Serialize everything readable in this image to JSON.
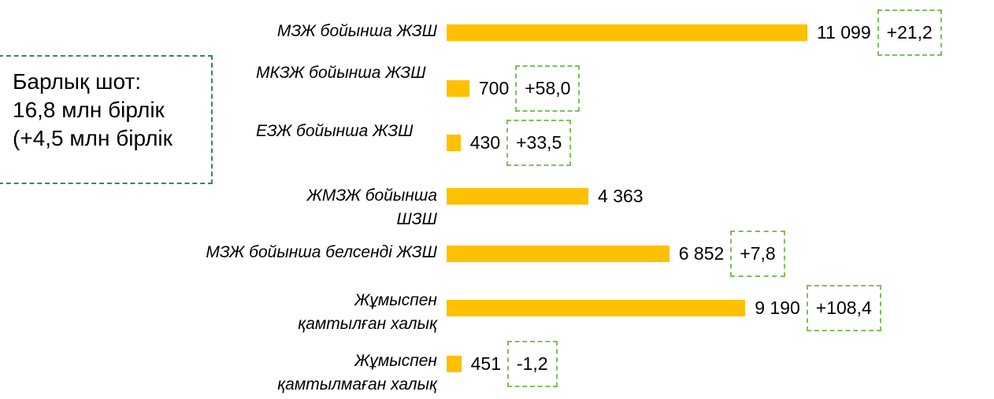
{
  "chart_data": {
    "type": "bar",
    "orientation": "horizontal",
    "categories": [
      "МЗЖ бойынша ЖЗШ",
      "МКЗЖ бойынша ЖЗШ",
      "ЕЗЖ бойынша ЖЗШ",
      "ЖМЗЖ бойынша ШЗШ",
      "МЗЖ бойынша белсенді ЖЗШ",
      "Жұмыспен қамтылған халық",
      "Жұмыспен қамтылмаған халық"
    ],
    "values": [
      11099,
      700,
      430,
      4363,
      6852,
      9190,
      451
    ],
    "value_labels": [
      "11 099",
      "700",
      "430",
      "4 363",
      "6 852",
      "9 190",
      "451"
    ],
    "color": "#ffc000",
    "changes": [
      21.2,
      58.0,
      33.5,
      null,
      7.8,
      108.4,
      -1.2
    ],
    "change_labels": [
      "+21,2",
      "+58,0",
      "+33,5",
      null,
      "+7,8",
      "+108,4",
      "-1,2"
    ],
    "annotation": [
      "Барлық шот:",
      "16,8 млн бірлік",
      "(+4,5 млн бірлік"
    ]
  }
}
